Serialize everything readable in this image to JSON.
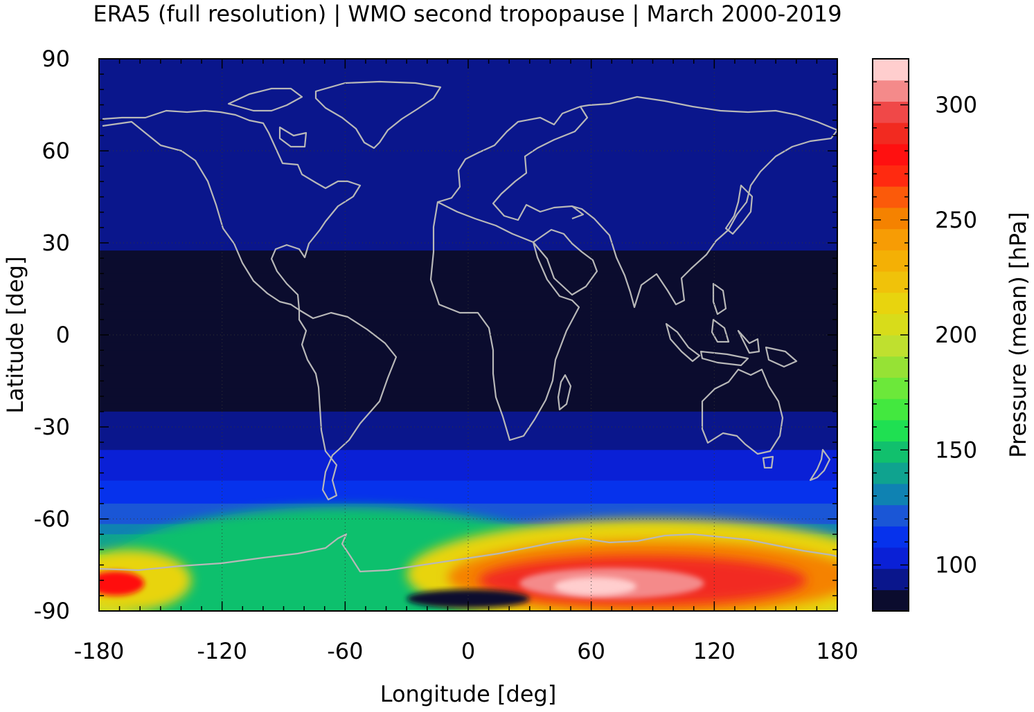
{
  "chart_data": {
    "type": "heatmap",
    "title": "ERA5 (full resolution) | WMO second tropopause | March 2000-2019",
    "xlabel": "Longitude [deg]",
    "ylabel": "Latitude [deg]",
    "colorbar_label": "Pressure (mean) [hPa]",
    "xlim": [
      -180,
      180
    ],
    "ylim": [
      -90,
      90
    ],
    "x_ticks": [
      -180,
      -120,
      -60,
      0,
      60,
      120,
      180
    ],
    "y_ticks": [
      90,
      60,
      30,
      0,
      -30,
      -60,
      -90
    ],
    "x_tick_labels": [
      "-180",
      "-120",
      "-60",
      "0",
      "60",
      "120",
      "180"
    ],
    "y_tick_labels": [
      "90",
      "60",
      "30",
      "0",
      "-30",
      "-60",
      "-90"
    ],
    "colorbar_range": [
      80,
      320
    ],
    "colorbar_ticks": [
      100,
      150,
      200,
      250,
      300
    ],
    "colorbar_tick_labels": [
      "100",
      "150",
      "200",
      "250",
      "300"
    ],
    "colorbar_colors": [
      "#0b0c2e",
      "#0a168c",
      "#0a20d6",
      "#0632ec",
      "#1a56d6",
      "#0f82b2",
      "#0fa38f",
      "#11c06d",
      "#1fe052",
      "#43e83f",
      "#6ce83a",
      "#96e235",
      "#bfe02f",
      "#d8dc1a",
      "#e8d40e",
      "#f0c20a",
      "#f4b005",
      "#f79c05",
      "#f58200",
      "#fb5a0a",
      "#ff2a10",
      "#ff1010",
      "#f22a20",
      "#f04848",
      "#f48a8a",
      "#ffcece"
    ],
    "zonal_mean_pressure": [
      {
        "lat": 90,
        "value": 90
      },
      {
        "lat": 75,
        "value": 97
      },
      {
        "lat": 60,
        "value": 98
      },
      {
        "lat": 45,
        "value": 96
      },
      {
        "lat": 30,
        "value": 90
      },
      {
        "lat": 15,
        "value": 82
      },
      {
        "lat": 0,
        "value": 82
      },
      {
        "lat": -15,
        "value": 82
      },
      {
        "lat": -30,
        "value": 92
      },
      {
        "lat": -45,
        "value": 104
      },
      {
        "lat": -60,
        "value": 122
      },
      {
        "lat": -70,
        "value": 145
      },
      {
        "lat": -80,
        "value": 220
      },
      {
        "lat": -90,
        "value": 190
      }
    ],
    "grid": true,
    "coastlines": true,
    "coastline_color": "#b8b8b8"
  }
}
